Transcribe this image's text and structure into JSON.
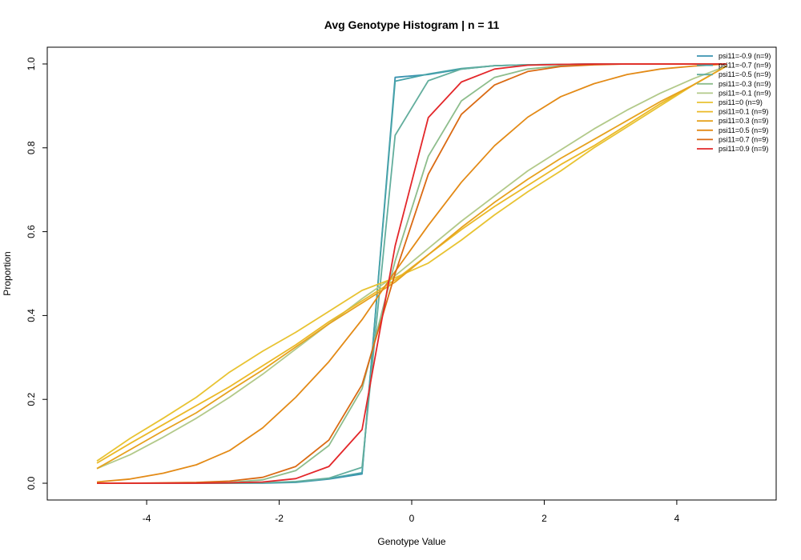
{
  "chart_data": {
    "type": "line",
    "title": "Avg Genotype Histogram | n = 11",
    "xlabel": "Genotype Value",
    "ylabel": "Proportion",
    "xlim": [
      -5.5,
      5.5
    ],
    "ylim": [
      -0.04,
      1.04
    ],
    "xticks": [
      -4,
      -2,
      0,
      2,
      4
    ],
    "xtick_labels": [
      "-4",
      "-2",
      "0",
      "2",
      "4"
    ],
    "yticks": [
      0.0,
      0.2,
      0.4,
      0.6,
      0.8,
      1.0
    ],
    "ytick_labels": [
      "0.0",
      "0.2",
      "0.4",
      "0.6",
      "0.8",
      "1.0"
    ],
    "grid": false,
    "legend_position": "top-right",
    "x": [
      -4.75,
      -4.25,
      -3.75,
      -3.25,
      -2.75,
      -2.25,
      -1.75,
      -1.25,
      -0.75,
      -0.25,
      0.25,
      0.75,
      1.25,
      1.75,
      2.25,
      2.75,
      3.25,
      3.75,
      4.25,
      4.75
    ],
    "series": [
      {
        "name": "psi11=-0.9 (n=9)",
        "color": "#3a93b0",
        "values": [
          0.0,
          0.0,
          0.0,
          0.0,
          0.0,
          0.0,
          0.002,
          0.01,
          0.022,
          0.968,
          0.975,
          0.988,
          0.996,
          0.998,
          0.999,
          1.0,
          1.0,
          1.0,
          1.0,
          1.0
        ]
      },
      {
        "name": "psi11=-0.7 (n=9)",
        "color": "#47a3a8",
        "values": [
          0.0,
          0.0,
          0.0,
          0.0,
          0.0,
          0.001,
          0.003,
          0.011,
          0.025,
          0.959,
          0.976,
          0.989,
          0.996,
          0.998,
          0.999,
          1.0,
          1.0,
          1.0,
          1.0,
          1.0
        ]
      },
      {
        "name": "psi11=-0.5 (n=9)",
        "color": "#63ae9d",
        "values": [
          0.0,
          0.0,
          0.0,
          0.0,
          0.0,
          0.001,
          0.004,
          0.012,
          0.038,
          0.83,
          0.96,
          0.988,
          0.996,
          0.998,
          0.999,
          1.0,
          1.0,
          1.0,
          1.0,
          1.0
        ]
      },
      {
        "name": "psi11=-0.3 (n=9)",
        "color": "#8dbd8c",
        "values": [
          0.0,
          0.0,
          0.0,
          0.001,
          0.002,
          0.008,
          0.03,
          0.09,
          0.225,
          0.53,
          0.78,
          0.912,
          0.968,
          0.988,
          0.996,
          0.999,
          1.0,
          1.0,
          1.0,
          1.0
        ]
      },
      {
        "name": "psi11=-0.1 (n=9)",
        "color": "#b2c989",
        "values": [
          0.035,
          0.068,
          0.11,
          0.155,
          0.205,
          0.26,
          0.32,
          0.38,
          0.44,
          0.495,
          0.56,
          0.625,
          0.685,
          0.745,
          0.795,
          0.845,
          0.89,
          0.93,
          0.965,
          0.995
        ]
      },
      {
        "name": "psi11=0 (n=9)",
        "color": "#e8c332",
        "values": [
          0.053,
          0.107,
          0.155,
          0.205,
          0.265,
          0.315,
          0.36,
          0.41,
          0.46,
          0.49,
          0.525,
          0.58,
          0.64,
          0.695,
          0.745,
          0.8,
          0.85,
          0.9,
          0.95,
          0.995
        ]
      },
      {
        "name": "psi11=0.1 (n=9)",
        "color": "#ebb927",
        "values": [
          0.048,
          0.095,
          0.14,
          0.185,
          0.23,
          0.28,
          0.33,
          0.385,
          0.435,
          0.485,
          0.545,
          0.605,
          0.66,
          0.71,
          0.76,
          0.805,
          0.855,
          0.905,
          0.95,
          0.995
        ]
      },
      {
        "name": "psi11=0.3 (n=9)",
        "color": "#e6a21f",
        "values": [
          0.035,
          0.08,
          0.125,
          0.168,
          0.22,
          0.27,
          0.325,
          0.38,
          0.43,
          0.48,
          0.545,
          0.61,
          0.67,
          0.725,
          0.775,
          0.82,
          0.865,
          0.91,
          0.95,
          0.995
        ]
      },
      {
        "name": "psi11=0.5 (n=9)",
        "color": "#e38a16",
        "values": [
          0.003,
          0.01,
          0.024,
          0.044,
          0.078,
          0.132,
          0.205,
          0.29,
          0.39,
          0.505,
          0.615,
          0.718,
          0.805,
          0.873,
          0.922,
          0.953,
          0.975,
          0.988,
          0.995,
          1.0
        ]
      },
      {
        "name": "psi11=0.7 (n=9)",
        "color": "#da6a13",
        "values": [
          0.0,
          0.0,
          0.001,
          0.002,
          0.005,
          0.014,
          0.04,
          0.103,
          0.235,
          0.5,
          0.737,
          0.88,
          0.95,
          0.982,
          0.994,
          0.998,
          1.0,
          1.0,
          1.0,
          1.0
        ]
      },
      {
        "name": "psi11=0.9 (n=9)",
        "color": "#e3272a",
        "values": [
          0.0,
          0.0,
          0.0,
          0.0,
          0.001,
          0.003,
          0.011,
          0.04,
          0.128,
          0.566,
          0.872,
          0.957,
          0.988,
          0.997,
          0.999,
          1.0,
          1.0,
          1.0,
          1.0,
          1.0
        ]
      }
    ]
  }
}
